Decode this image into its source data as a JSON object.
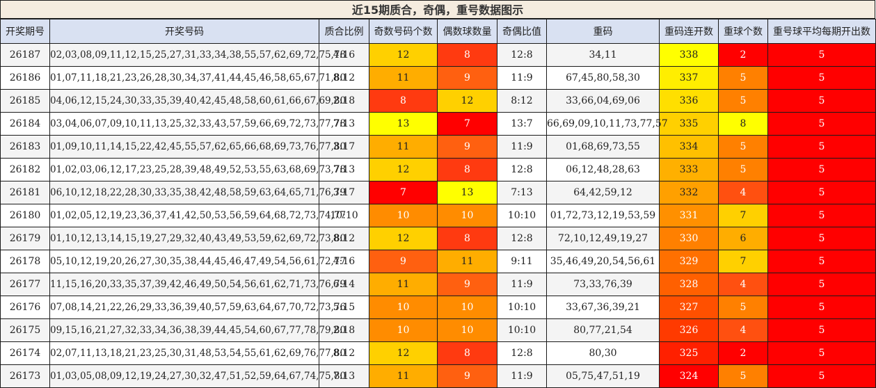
{
  "title": "近15期质合，奇偶，重号数据图示",
  "headers": [
    "开奖期号",
    "开奖号码",
    "质合比例",
    "奇数号码个数",
    "偶数球数量",
    "奇偶比值",
    "重码",
    "重码连开数",
    "重球个数",
    "重号球平均每期开出数"
  ],
  "rows": [
    [
      "26187",
      "02,03,08,09,11,12,15,25,27,31,33,34,38,55,57,62,69,72,75,78",
      "4:16",
      "12",
      "8",
      "12:8",
      "34,11",
      "338",
      "2",
      "5"
    ],
    [
      "26186",
      "01,07,11,18,21,23,26,28,30,34,37,41,44,45,46,58,65,67,71,80",
      "8:12",
      "11",
      "9",
      "11:9",
      "67,45,80,58,30",
      "337",
      "5",
      "5"
    ],
    [
      "26185",
      "04,06,12,15,24,30,33,35,39,40,42,45,48,58,60,61,66,67,69,80",
      "2:18",
      "8",
      "12",
      "8:12",
      "33,66,04,69,06",
      "336",
      "5",
      "5"
    ],
    [
      "26184",
      "03,04,06,07,09,10,11,13,25,32,33,43,57,59,66,69,72,73,77,78",
      "7:13",
      "13",
      "7",
      "13:7",
      "66,69,09,10,11,73,77,57",
      "335",
      "8",
      "5"
    ],
    [
      "26183",
      "01,09,10,11,14,15,22,42,45,55,57,62,65,66,68,69,73,76,77,80",
      "3:17",
      "11",
      "9",
      "11:9",
      "01,68,69,73,55",
      "334",
      "5",
      "5"
    ],
    [
      "26182",
      "01,02,03,06,12,17,23,25,28,39,48,49,52,53,55,63,68,69,73,78",
      "7:13",
      "12",
      "8",
      "12:8",
      "06,12,48,28,63",
      "333",
      "5",
      "5"
    ],
    [
      "26181",
      "06,10,12,18,22,28,30,33,35,38,42,48,58,59,63,64,65,71,76,79",
      "3:17",
      "7",
      "13",
      "7:13",
      "64,42,59,12",
      "332",
      "4",
      "5"
    ],
    [
      "26180",
      "01,02,05,12,19,23,36,37,41,42,50,53,56,59,64,68,72,73,74,77",
      "10:10",
      "10",
      "10",
      "10:10",
      "01,72,73,12,19,53,59",
      "331",
      "7",
      "5"
    ],
    [
      "26179",
      "01,10,12,13,14,15,19,27,29,32,40,43,49,53,59,62,69,72,73,80",
      "8:12",
      "12",
      "8",
      "12:8",
      "72,10,12,49,19,27",
      "330",
      "6",
      "5"
    ],
    [
      "26178",
      "05,10,12,19,20,26,27,30,35,38,44,45,46,47,49,54,56,61,72,77",
      "4:16",
      "9",
      "11",
      "9:11",
      "35,46,49,20,54,56,61",
      "329",
      "7",
      "5"
    ],
    [
      "26177",
      "11,15,16,20,33,35,37,39,42,46,49,50,54,56,61,62,71,73,76,79",
      "6:14",
      "11",
      "9",
      "11:9",
      "73,33,76,39",
      "328",
      "4",
      "5"
    ],
    [
      "26176",
      "07,08,14,21,22,26,29,33,36,39,40,57,59,63,64,67,70,72,73,76",
      "5:15",
      "10",
      "10",
      "10:10",
      "33,67,36,39,21",
      "327",
      "5",
      "5"
    ],
    [
      "26175",
      "09,15,16,21,27,32,33,34,36,38,39,44,45,54,60,67,77,78,79,80",
      "2:18",
      "10",
      "10",
      "10:10",
      "80,77,21,54",
      "326",
      "4",
      "5"
    ],
    [
      "26174",
      "02,07,11,13,18,21,23,25,30,31,48,53,54,55,61,62,69,76,77,80",
      "8:12",
      "12",
      "8",
      "12:8",
      "80,30",
      "325",
      "2",
      "5"
    ],
    [
      "26173",
      "01,03,05,08,09,12,19,24,27,30,32,47,51,52,59,64,67,74,75,80",
      "7:13",
      "11",
      "9",
      "11:9",
      "05,75,47,51,19",
      "324",
      "5",
      "5"
    ]
  ],
  "cell_colors": {
    "odd_count": [
      "#ffd000",
      "#ffad00",
      "#ff3a10",
      "#ffff00",
      "#ffad00",
      "#ffd000",
      "#ff0000",
      "#ff8c00",
      "#ffd000",
      "#ff6010",
      "#ffad00",
      "#ff8c00",
      "#ff8c00",
      "#ffd000",
      "#ffad00"
    ],
    "even_count": [
      "#ff3a10",
      "#ff6010",
      "#ffd000",
      "#ff0000",
      "#ff6010",
      "#ff3a10",
      "#ffff00",
      "#ff8c00",
      "#ff3a10",
      "#ffad00",
      "#ff6010",
      "#ff8c00",
      "#ff8c00",
      "#ff3a10",
      "#ff6010"
    ],
    "repeat_streak": [
      "#ffff00",
      "#ffee00",
      "#ffdf00",
      "#ffd000",
      "#ffc000",
      "#ffb000",
      "#ffa000",
      "#ff9000",
      "#ff8000",
      "#ff7000",
      "#ff6000",
      "#ff5000",
      "#ff3a00",
      "#ff2000",
      "#ff0000"
    ],
    "repeat_balls": [
      "#ff0000",
      "#ff8000",
      "#ff8000",
      "#ffff00",
      "#ff8000",
      "#ff8000",
      "#ff5010",
      "#ffd000",
      "#ffad00",
      "#ffd000",
      "#ff5010",
      "#ff8000",
      "#ff5010",
      "#ff0000",
      "#ff8000"
    ],
    "avg_repeat": "#ff0000"
  },
  "text_colors": {
    "dark": "#222222",
    "light": "#ffffff"
  }
}
